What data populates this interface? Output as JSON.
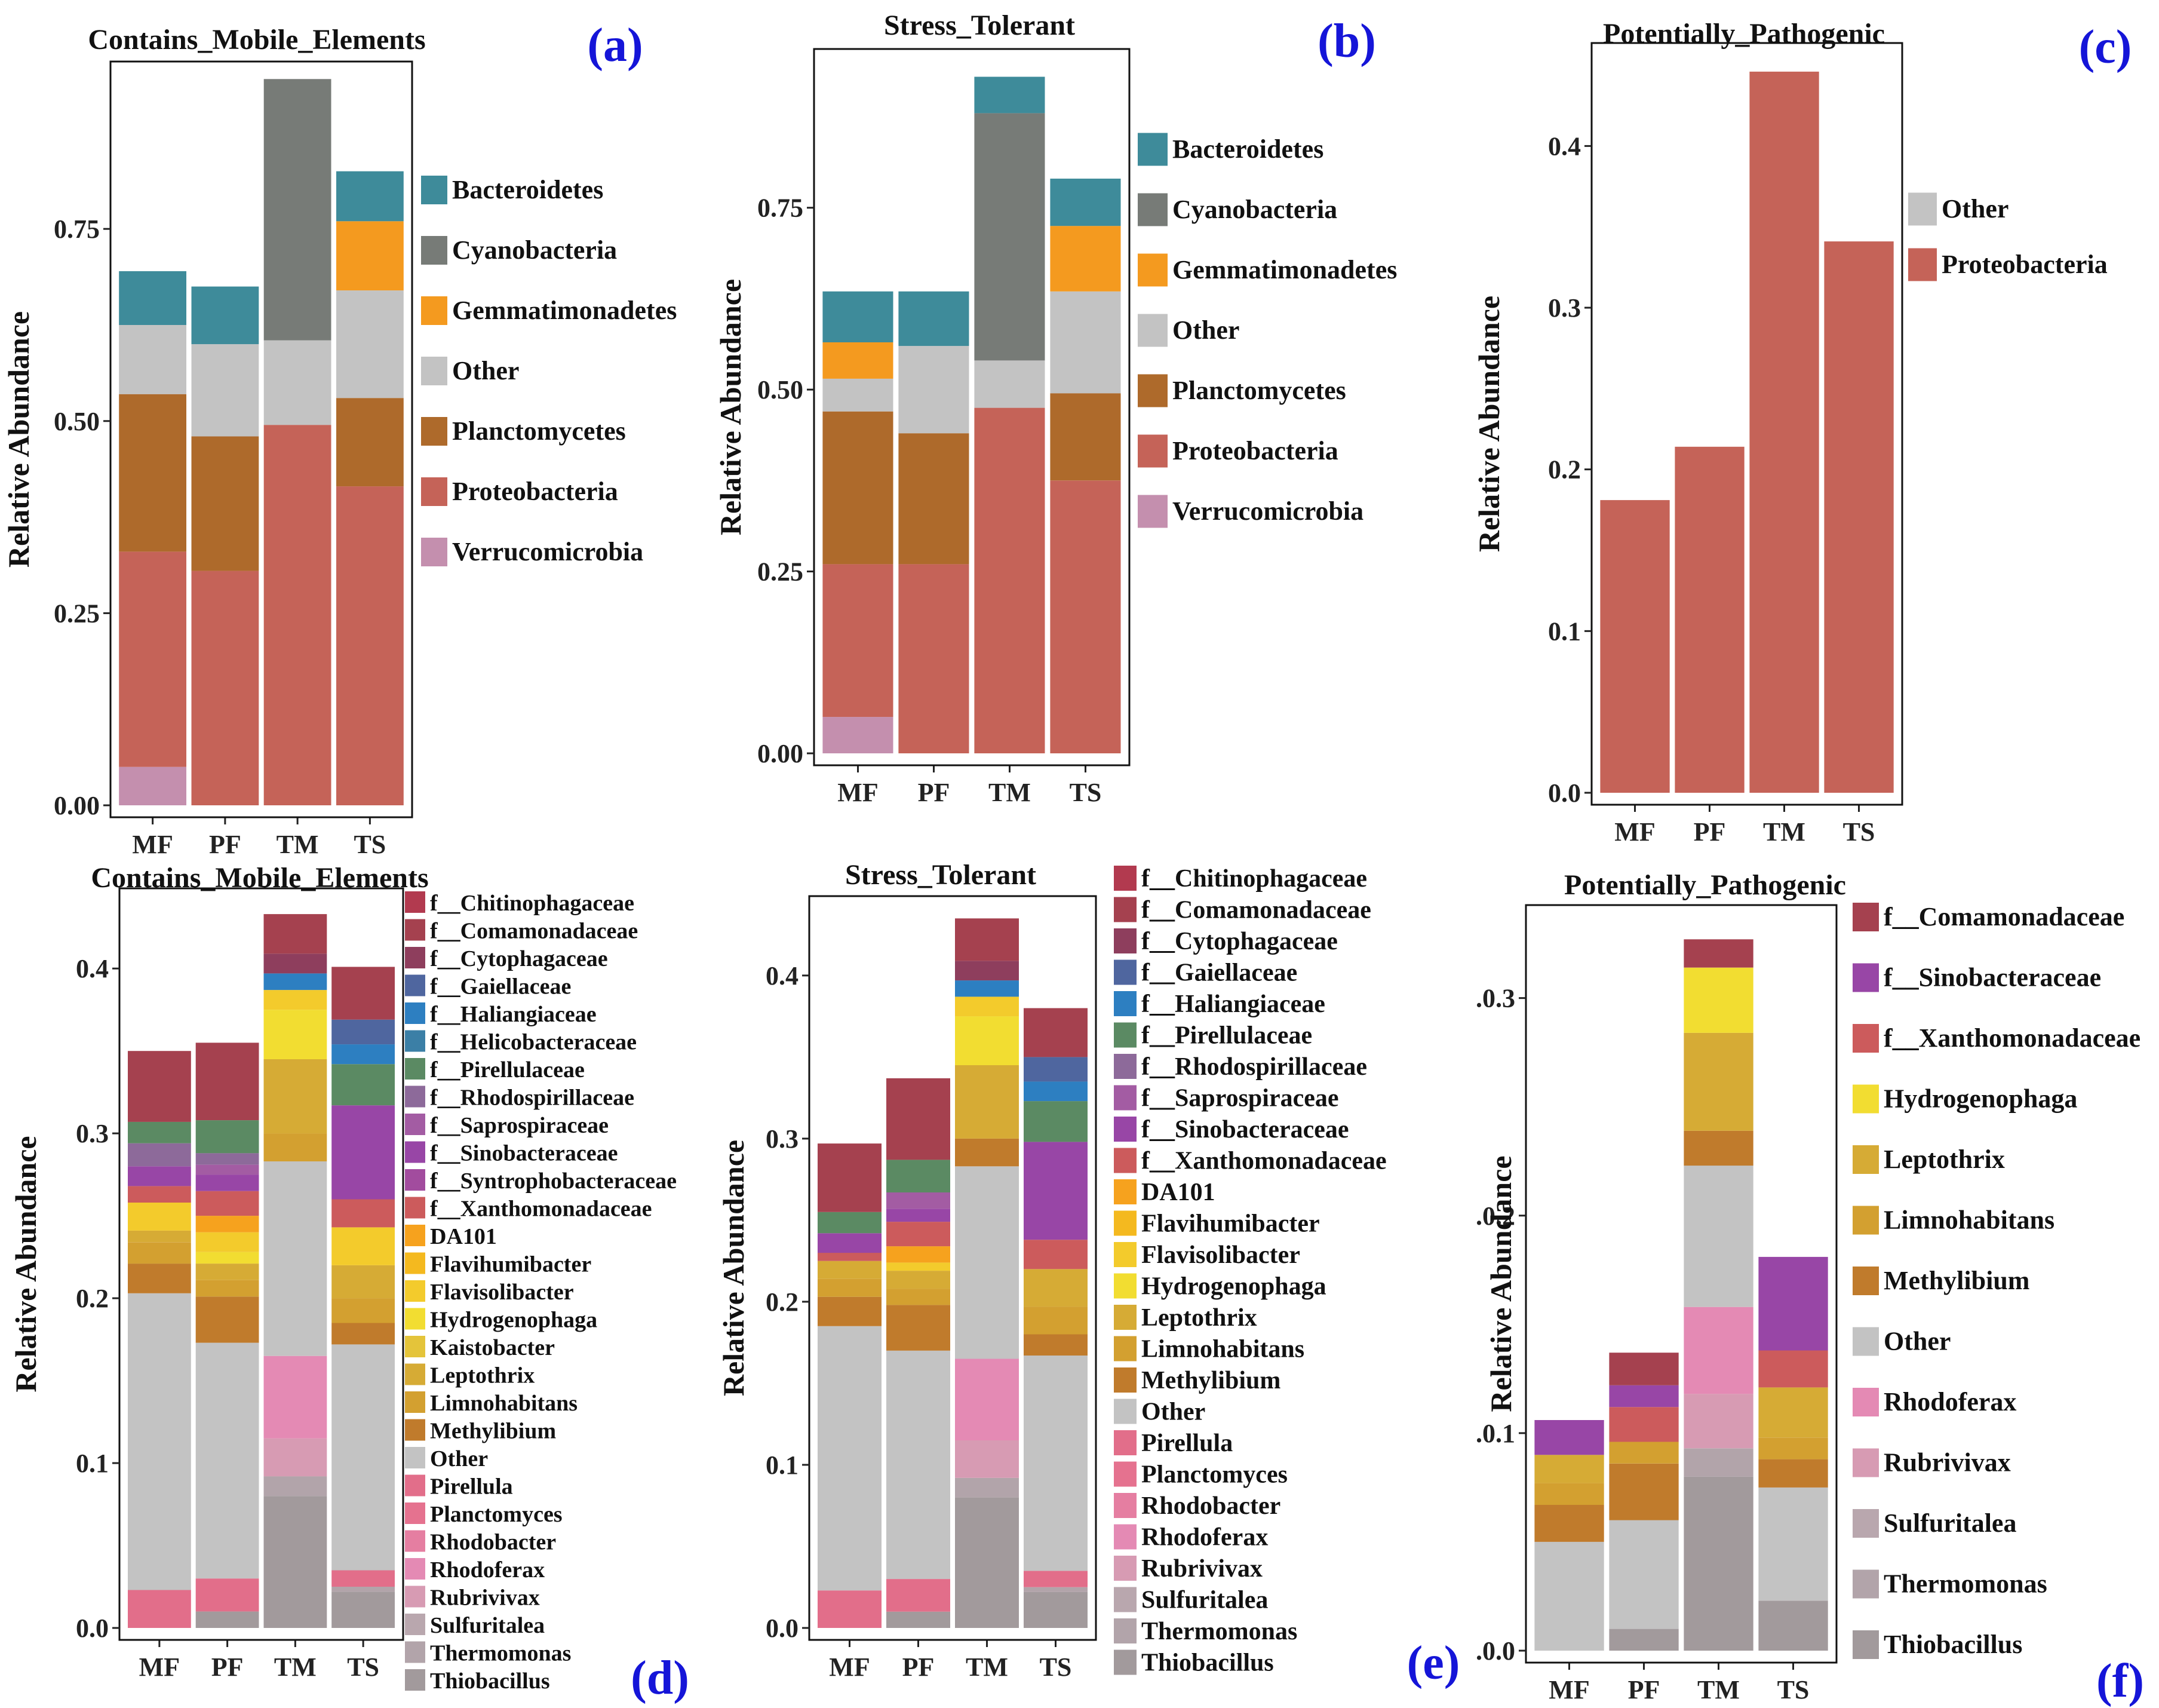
{
  "chart_data": [
    {
      "panel_label": "(a)",
      "title": "Contains_Mobile_Elements",
      "type": "bar",
      "stacked": true,
      "xlabel": "",
      "ylabel": "Relative Abundance",
      "ylim": [
        0,
        0.96
      ],
      "yticks": [
        "0.00",
        "0.25",
        "0.50",
        "0.75"
      ],
      "ytick_values": [
        0,
        0.25,
        0.5,
        0.75
      ],
      "categories": [
        "MF",
        "PF",
        "TM",
        "TS"
      ],
      "legend_position": "right",
      "series": [
        {
          "name": "Verrucomicrobia",
          "color": "#c48fae",
          "values": [
            0.05,
            0,
            0,
            0
          ]
        },
        {
          "name": "Proteobacteria",
          "color": "#c56358",
          "values": [
            0.28,
            0.305,
            0.495,
            0.415
          ]
        },
        {
          "name": "Planctomycetes",
          "color": "#ae6a2b",
          "values": [
            0.205,
            0.175,
            0,
            0.115
          ]
        },
        {
          "name": "Other",
          "color": "#c3c3c3",
          "values": [
            0.09,
            0.12,
            0.11,
            0.14
          ]
        },
        {
          "name": "Gemmatimonadetes",
          "color": "#f49a1f",
          "values": [
            0,
            0,
            0,
            0.09
          ]
        },
        {
          "name": "Cyanobacteria",
          "color": "#777b77",
          "values": [
            0,
            0,
            0.34,
            0
          ]
        },
        {
          "name": "Bacteroidetes",
          "color": "#3e8b9a",
          "values": [
            0.07,
            0.075,
            0,
            0.065
          ]
        }
      ],
      "legend": [
        "Bacteroidetes",
        "Cyanobacteria",
        "Gemmatimonadetes",
        "Other",
        "Planctomycetes",
        "Proteobacteria",
        "Verrucomicrobia"
      ]
    },
    {
      "panel_label": "(b)",
      "title": "Stress_Tolerant",
      "type": "bar",
      "stacked": true,
      "xlabel": "",
      "ylabel": "Relative Abundance",
      "ylim": [
        0,
        0.96
      ],
      "yticks": [
        "0.00",
        "0.25",
        "0.50",
        "0.75"
      ],
      "ytick_values": [
        0,
        0.25,
        0.5,
        0.75
      ],
      "categories": [
        "MF",
        "PF",
        "TM",
        "TS"
      ],
      "legend_position": "right",
      "series": [
        {
          "name": "Verrucomicrobia",
          "color": "#c48fae",
          "values": [
            0.05,
            0,
            0,
            0
          ]
        },
        {
          "name": "Proteobacteria",
          "color": "#c56358",
          "values": [
            0.21,
            0.26,
            0.475,
            0.375
          ]
        },
        {
          "name": "Planctomycetes",
          "color": "#ae6a2b",
          "values": [
            0.21,
            0.18,
            0,
            0.12
          ]
        },
        {
          "name": "Other",
          "color": "#c3c3c3",
          "values": [
            0.045,
            0.12,
            0.065,
            0.14
          ]
        },
        {
          "name": "Gemmatimonadetes",
          "color": "#f49a1f",
          "values": [
            0.05,
            0,
            0,
            0.09
          ]
        },
        {
          "name": "Cyanobacteria",
          "color": "#777b77",
          "values": [
            0,
            0,
            0.34,
            0
          ]
        },
        {
          "name": "Bacteroidetes",
          "color": "#3e8b9a",
          "values": [
            0.07,
            0.075,
            0.05,
            0.065
          ]
        }
      ],
      "legend": [
        "Bacteroidetes",
        "Cyanobacteria",
        "Gemmatimonadetes",
        "Other",
        "Planctomycetes",
        "Proteobacteria",
        "Verrucomicrobia"
      ]
    },
    {
      "panel_label": "(c)",
      "title": "Potentially_Pathogenic",
      "type": "bar",
      "stacked": true,
      "xlabel": "",
      "ylabel": "Relative Abundance",
      "ylim": [
        0,
        0.46
      ],
      "yticks": [
        "0.0",
        "0.1",
        "0.2",
        "0.3",
        "0.4"
      ],
      "ytick_values": [
        0,
        0.1,
        0.2,
        0.3,
        0.4
      ],
      "categories": [
        "MF",
        "PF",
        "TM",
        "TS"
      ],
      "legend_position": "right",
      "series": [
        {
          "name": "Proteobacteria",
          "color": "#c56358",
          "values": [
            0.181,
            0.214,
            0.446,
            0.341
          ]
        },
        {
          "name": "Other",
          "color": "#c3c3c3",
          "values": [
            0,
            0,
            0,
            0
          ]
        }
      ],
      "legend": [
        "Other",
        "Proteobacteria"
      ]
    },
    {
      "panel_label": "(d)",
      "title": "Contains_Mobile_Elements",
      "type": "bar",
      "stacked": true,
      "xlabel": "",
      "ylabel": "Relative Abundance",
      "ylim": [
        0,
        0.445
      ],
      "yticks": [
        "0.0",
        "0.1",
        "0.2",
        "0.3",
        "0.4"
      ],
      "ytick_values": [
        0,
        0.1,
        0.2,
        0.3,
        0.4
      ],
      "categories": [
        "MF",
        "PF",
        "TM",
        "TS"
      ],
      "legend_position": "right",
      "series": [
        {
          "name": "Thiobacillus",
          "color": "#a29a9c",
          "values": [
            0,
            0.01,
            0.08,
            0.022
          ]
        },
        {
          "name": "Thermomonas",
          "color": "#b2a4aa",
          "values": [
            0,
            0,
            0.012,
            0.003
          ]
        },
        {
          "name": "Rubrivivax",
          "color": "#d79bb3",
          "values": [
            0,
            0,
            0.023,
            0
          ]
        },
        {
          "name": "Rhodoferax",
          "color": "#e48ab4",
          "values": [
            0,
            0,
            0.05,
            0
          ]
        },
        {
          "name": "Pirellula",
          "color": "#e26e8a",
          "values": [
            0.023,
            0.02,
            0,
            0.01
          ]
        },
        {
          "name": "Other",
          "color": "#c3c3c3",
          "values": [
            0.18,
            0.143,
            0.118,
            0.137
          ]
        },
        {
          "name": "Methylibium",
          "color": "#c07b2c",
          "values": [
            0.018,
            0.028,
            0,
            0.013
          ]
        },
        {
          "name": "Limnohabitans",
          "color": "#d3a030",
          "values": [
            0.013,
            0.01,
            0.017,
            0.015
          ]
        },
        {
          "name": "Leptothrix",
          "color": "#d6ab35",
          "values": [
            0.007,
            0.01,
            0.045,
            0.02
          ]
        },
        {
          "name": "Hydrogenophaga",
          "color": "#f2dd31",
          "values": [
            0,
            0.007,
            0.03,
            0
          ]
        },
        {
          "name": "Flavisolibacter",
          "color": "#f3cb2c",
          "values": [
            0.017,
            0.012,
            0.012,
            0.023
          ]
        },
        {
          "name": "DA101",
          "color": "#f6a21e",
          "values": [
            0,
            0.01,
            0,
            0
          ]
        },
        {
          "name": "f__Xanthomonadaceae",
          "color": "#cc5b5c",
          "values": [
            0.01,
            0.015,
            0,
            0.017
          ]
        },
        {
          "name": "f__Sinobacteraceae",
          "color": "#9846a6",
          "values": [
            0.012,
            0.01,
            0,
            0.057
          ]
        },
        {
          "name": "f__Saprospiraceae",
          "color": "#a35ca3",
          "values": [
            0,
            0.006,
            0,
            0
          ]
        },
        {
          "name": "f__Rhodospirillaceae",
          "color": "#8d6a9a",
          "values": [
            0.014,
            0.007,
            0,
            0
          ]
        },
        {
          "name": "f__Pirellulaceae",
          "color": "#5b8a63",
          "values": [
            0.013,
            0.02,
            0,
            0.025
          ]
        },
        {
          "name": "f__Haliangiaceae",
          "color": "#2d7fc1",
          "values": [
            0,
            0,
            0.01,
            0.012
          ]
        },
        {
          "name": "f__Gaiellaceae",
          "color": "#4f669f",
          "values": [
            0,
            0,
            0,
            0.015
          ]
        },
        {
          "name": "f__Cytophagaceae",
          "color": "#8e3e5d",
          "values": [
            0,
            0,
            0.012,
            0
          ]
        },
        {
          "name": "f__Comamonadaceae",
          "color": "#a5414f",
          "values": [
            0.043,
            0.047,
            0.024,
            0.032
          ]
        }
      ],
      "legend": [
        "f__Chitinophagaceae",
        "f__Comamonadaceae",
        "f__Cytophagaceae",
        "f__Gaiellaceae",
        "f__Haliangiaceae",
        "f__Helicobacteraceae",
        "f__Pirellulaceae",
        "f__Rhodospirillaceae",
        "f__Saprospiraceae",
        "f__Sinobacteraceae",
        "f__Syntrophobacteraceae",
        "f__Xanthomonadaceae",
        "DA101",
        "Flavihumibacter",
        "Flavisolibacter",
        "Hydrogenophaga",
        "Kaistobacter",
        "Leptothrix",
        "Limnohabitans",
        "Methylibium",
        "Other",
        "Pirellula",
        "Planctomyces",
        "Rhodobacter",
        "Rhodoferax",
        "Rubrivivax",
        "Sulfuritalea",
        "Thermomonas",
        "Thiobacillus"
      ]
    },
    {
      "panel_label": "(e)",
      "title": "Stress_Tolerant",
      "type": "bar",
      "stacked": true,
      "xlabel": "",
      "ylabel": "Relative Abundance",
      "ylim": [
        0,
        0.445
      ],
      "yticks": [
        "0.0",
        "0.1",
        "0.2",
        "0.3",
        "0.4"
      ],
      "ytick_values": [
        0,
        0.1,
        0.2,
        0.3,
        0.4
      ],
      "categories": [
        "MF",
        "PF",
        "TM",
        "TS"
      ],
      "legend_position": "right",
      "series": [
        {
          "name": "Thiobacillus",
          "color": "#a29a9c",
          "values": [
            0,
            0.01,
            0.08,
            0.022
          ]
        },
        {
          "name": "Thermomonas",
          "color": "#b2a4aa",
          "values": [
            0,
            0,
            0.012,
            0.003
          ]
        },
        {
          "name": "Rubrivivax",
          "color": "#d79bb3",
          "values": [
            0,
            0,
            0.023,
            0
          ]
        },
        {
          "name": "Rhodoferax",
          "color": "#e48ab4",
          "values": [
            0,
            0,
            0.05,
            0
          ]
        },
        {
          "name": "Pirellula",
          "color": "#e26e8a",
          "values": [
            0.023,
            0.02,
            0,
            0.01
          ]
        },
        {
          "name": "Other",
          "color": "#c3c3c3",
          "values": [
            0.162,
            0.14,
            0.118,
            0.132
          ]
        },
        {
          "name": "Methylibium",
          "color": "#c07b2c",
          "values": [
            0.018,
            0.028,
            0.017,
            0.013
          ]
        },
        {
          "name": "Limnohabitans",
          "color": "#d3a030",
          "values": [
            0.011,
            0.01,
            0,
            0.017
          ]
        },
        {
          "name": "Leptothrix",
          "color": "#d6ab35",
          "values": [
            0.011,
            0.011,
            0.045,
            0.023
          ]
        },
        {
          "name": "Hydrogenophaga",
          "color": "#f2dd31",
          "values": [
            0,
            0,
            0.03,
            0
          ]
        },
        {
          "name": "Flavisolibacter",
          "color": "#f3cb2c",
          "values": [
            0,
            0.005,
            0.012,
            0
          ]
        },
        {
          "name": "DA101",
          "color": "#f6a21e",
          "values": [
            0,
            0.01,
            0,
            0
          ]
        },
        {
          "name": "f__Xanthomonadaceae",
          "color": "#cc5b5c",
          "values": [
            0.005,
            0.015,
            0,
            0.018
          ]
        },
        {
          "name": "f__Sinobacteraceae",
          "color": "#9846a6",
          "values": [
            0.012,
            0.008,
            0,
            0.06
          ]
        },
        {
          "name": "f__Saprospiraceae",
          "color": "#a35ca3",
          "values": [
            0,
            0.01,
            0,
            0
          ]
        },
        {
          "name": "f__Pirellulaceae",
          "color": "#5b8a63",
          "values": [
            0.013,
            0.02,
            0,
            0.025
          ]
        },
        {
          "name": "f__Haliangiaceae",
          "color": "#2d7fc1",
          "values": [
            0,
            0,
            0.01,
            0.012
          ]
        },
        {
          "name": "f__Gaiellaceae",
          "color": "#4f669f",
          "values": [
            0,
            0,
            0,
            0.015
          ]
        },
        {
          "name": "f__Cytophagaceae",
          "color": "#8e3e5d",
          "values": [
            0,
            0,
            0.012,
            0
          ]
        },
        {
          "name": "f__Comamonadaceae",
          "color": "#a5414f",
          "values": [
            0.042,
            0.05,
            0.026,
            0.03
          ]
        }
      ],
      "legend": [
        "f__Chitinophagaceae",
        "f__Comamonadaceae",
        "f__Cytophagaceae",
        "f__Gaiellaceae",
        "f__Haliangiaceae",
        "f__Pirellulaceae",
        "f__Rhodospirillaceae",
        "f__Saprospiraceae",
        "f__Sinobacteraceae",
        "f__Xanthomonadaceae",
        "DA101",
        "Flavihumibacter",
        "Flavisolibacter",
        "Hydrogenophaga",
        "Leptothrix",
        "Limnohabitans",
        "Methylibium",
        "Other",
        "Pirellula",
        "Planctomyces",
        "Rhodobacter",
        "Rhodoferax",
        "Rubrivivax",
        "Sulfuritalea",
        "Thermomonas",
        "Thiobacillus"
      ]
    },
    {
      "panel_label": "(f)",
      "title": "Potentially_Pathogenic",
      "type": "bar",
      "stacked": true,
      "xlabel": "",
      "ylabel": "Relative Abundance",
      "ylim": [
        0,
        0.34
      ],
      "yticks": [
        ".0.0",
        ".0.1",
        ".0.2",
        ".0.3"
      ],
      "ytick_values": [
        0,
        0.1,
        0.2,
        0.3
      ],
      "categories": [
        "MF",
        "PF",
        "TM",
        "TS"
      ],
      "legend_position": "right",
      "series": [
        {
          "name": "Thiobacillus",
          "color": "#a29a9c",
          "values": [
            0,
            0.01,
            0.08,
            0.023
          ]
        },
        {
          "name": "Thermomonas",
          "color": "#b2a4aa",
          "values": [
            0,
            0,
            0.013,
            0
          ]
        },
        {
          "name": "Rubrivivax",
          "color": "#d79bb3",
          "values": [
            0,
            0,
            0.025,
            0
          ]
        },
        {
          "name": "Rhodoferax",
          "color": "#e48ab4",
          "values": [
            0,
            0,
            0.04,
            0
          ]
        },
        {
          "name": "Other",
          "color": "#c3c3c3",
          "values": [
            0.05,
            0.05,
            0.065,
            0.052
          ]
        },
        {
          "name": "Methylibium",
          "color": "#c07b2c",
          "values": [
            0.017,
            0.026,
            0.016,
            0.013
          ]
        },
        {
          "name": "Limnohabitans",
          "color": "#d3a030",
          "values": [
            0.01,
            0.01,
            0,
            0.01
          ]
        },
        {
          "name": "Leptothrix",
          "color": "#d6ab35",
          "values": [
            0.013,
            0,
            0.045,
            0.023
          ]
        },
        {
          "name": "Hydrogenophaga",
          "color": "#f2dd31",
          "values": [
            0,
            0,
            0.03,
            0
          ]
        },
        {
          "name": "f__Xanthomonadaceae",
          "color": "#cc5b5c",
          "values": [
            0,
            0.016,
            0,
            0.017
          ]
        },
        {
          "name": "f__Sinobacteraceae",
          "color": "#9846a6",
          "values": [
            0.016,
            0.01,
            0,
            0.043
          ]
        },
        {
          "name": "f__Comamonadaceae",
          "color": "#a5414f",
          "values": [
            0,
            0.015,
            0.013,
            0
          ]
        }
      ],
      "legend": [
        "f__Comamonadaceae",
        "f__Sinobacteraceae",
        "f__Xanthomonadaceae",
        "Hydrogenophaga",
        "Leptothrix",
        "Limnohabitans",
        "Methylibium",
        "Other",
        "Rhodoferax",
        "Rubrivivax",
        "Sulfuritalea",
        "Thermomonas",
        "Thiobacillus"
      ]
    }
  ],
  "colors": {
    "Bacteroidetes": "#3e8b9a",
    "Cyanobacteria": "#777b77",
    "Gemmatimonadetes": "#f49a1f",
    "Other": "#c3c3c3",
    "Planctomycetes": "#ae6a2b",
    "Proteobacteria": "#c56358",
    "Verrucomicrobia": "#c48fae",
    "f__Chitinophagaceae": "#b23a4f",
    "f__Comamonadaceae": "#a5414f",
    "f__Cytophagaceae": "#8e3e5d",
    "f__Gaiellaceae": "#4f669f",
    "f__Haliangiaceae": "#2d7fc1",
    "f__Helicobacteraceae": "#3b7fa6",
    "f__Pirellulaceae": "#5b8a63",
    "f__Rhodospirillaceae": "#8d6a9a",
    "f__Saprospiraceae": "#a35ca3",
    "f__Sinobacteraceae": "#9846a6",
    "f__Syntrophobacteraceae": "#a24c9e",
    "f__Xanthomonadaceae": "#cc5b5c",
    "DA101": "#f6a21e",
    "Flavihumibacter": "#f4b91f",
    "Flavisolibacter": "#f3cb2c",
    "Hydrogenophaga": "#f2dd31",
    "Kaistobacter": "#e4c43a",
    "Leptothrix": "#d6ab35",
    "Limnohabitans": "#d3a030",
    "Methylibium": "#c07b2c",
    "Pirellula": "#e26e8a",
    "Planctomyces": "#e5728f",
    "Rhodobacter": "#e57ea1",
    "Rhodoferax": "#e48ab4",
    "Rubrivivax": "#d79bb3",
    "Sulfuritalea": "#b9a7ae",
    "Thermomonas": "#b2a4aa",
    "Thiobacillus": "#a29a9c"
  }
}
